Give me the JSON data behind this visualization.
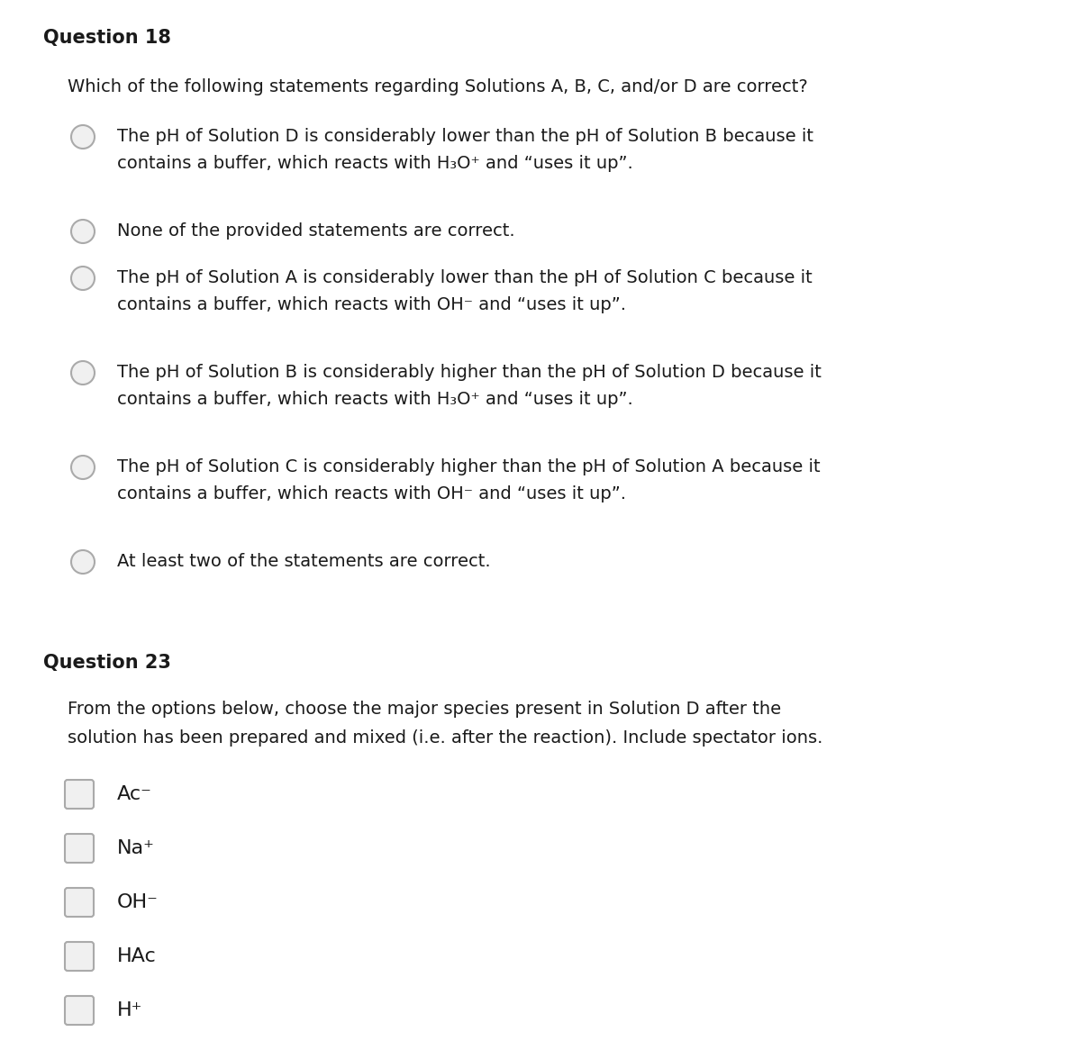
{
  "bg_color": "#ffffff",
  "q18_title": "Question 18",
  "q18_prompt": "Which of the following statements regarding Solutions A, B, C, and/or D are correct?",
  "q18_options_line1": [
    "The pH of Solution D is considerably lower than the pH of Solution B because it",
    "None of the provided statements are correct.",
    "The pH of Solution A is considerably lower than the pH of Solution C because it",
    "The pH of Solution B is considerably higher than the pH of Solution D because it",
    "The pH of Solution C is considerably higher than the pH of Solution A because it",
    "At least two of the statements are correct."
  ],
  "q18_options_line2": [
    "contains a buffer, which reacts with H₃O⁺ and “uses it up”.",
    "",
    "contains a buffer, which reacts with OH⁻ and “uses it up”.",
    "contains a buffer, which reacts with H₃O⁺ and “uses it up”.",
    "contains a buffer, which reacts with OH⁻ and “uses it up”.",
    ""
  ],
  "q23_title": "Question 23",
  "q23_prompt_line1": "From the options below, choose the major species present in Solution D after the",
  "q23_prompt_line2": "solution has been prepared and mixed (i.e. after the reaction). Include spectator ions.",
  "q23_options": [
    "Ac⁻",
    "Na⁺",
    "OH⁻",
    "HAc",
    "H⁺"
  ],
  "title_fontsize": 15,
  "prompt_fontsize": 14,
  "option_fontsize": 14,
  "text_color": "#1a1a1a",
  "circle_edge_color": "#aaaaaa",
  "circle_face_color": "#f0f0f0",
  "square_edge_color": "#aaaaaa",
  "square_face_color": "#f0f0f0"
}
